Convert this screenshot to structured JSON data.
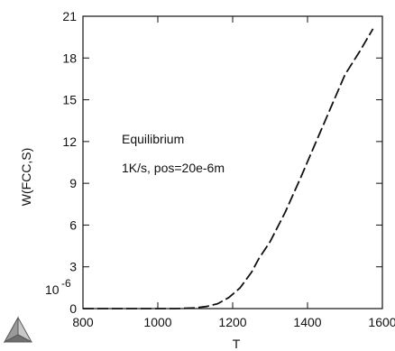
{
  "chart_data": {
    "type": "line",
    "xlabel": "T",
    "ylabel": "W(FCC,S)",
    "y_multiplier_label": "10",
    "y_multiplier_exp": "-6",
    "xlim": [
      800,
      1600
    ],
    "ylim": [
      0,
      21
    ],
    "x_ticks": [
      800,
      1000,
      1200,
      1400,
      1600
    ],
    "x_tick_labels": [
      "800",
      "1000",
      "1200",
      "1400",
      "1600"
    ],
    "y_ticks": [
      0,
      3,
      6,
      9,
      12,
      15,
      18,
      21
    ],
    "y_tick_labels": [
      "0",
      "3",
      "6",
      "9",
      "12",
      "15",
      "18",
      "21"
    ],
    "annotations": [
      "Equilibrium",
      "1K/s, pos=20e-6m"
    ],
    "series": [
      {
        "style": "dashed",
        "color": "#111111",
        "x": [
          800,
          900,
          1000,
          1050,
          1100,
          1130,
          1160,
          1190,
          1220,
          1250,
          1270,
          1300,
          1340,
          1380,
          1420,
          1460,
          1500,
          1540,
          1575
        ],
        "y": [
          0,
          0,
          0,
          0,
          0.05,
          0.15,
          0.35,
          0.8,
          1.5,
          2.6,
          3.6,
          4.8,
          6.9,
          9.3,
          11.8,
          14.3,
          16.8,
          18.5,
          20.1
        ]
      }
    ]
  },
  "logo": {
    "name": "thermo-calc-logo",
    "colors": [
      "#8a8a8a",
      "#c8c8c8",
      "#5a5a5a"
    ]
  }
}
